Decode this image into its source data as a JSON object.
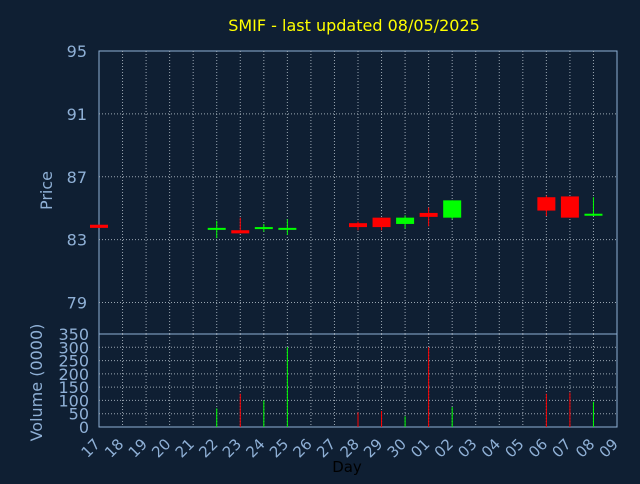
{
  "chart_data": [
    {
      "type": "candlestick",
      "title": "SMIF - last updated 08/05/2025",
      "ylabel": "Price",
      "ylim": [
        77,
        95
      ],
      "yticks": [
        95,
        91,
        87,
        83,
        79
      ],
      "grid": true,
      "x_day_labels": [
        "17",
        "18",
        "19",
        "20",
        "21",
        "22",
        "23",
        "24",
        "25",
        "26",
        "27",
        "28",
        "29",
        "30",
        "01",
        "02",
        "03",
        "04",
        "05",
        "06",
        "07",
        "08",
        "09"
      ],
      "candles": [
        {
          "day": "17",
          "open": 83.95,
          "close": 83.75,
          "high": 83.95,
          "low": 83.75
        },
        {
          "day": "22",
          "open": 83.7,
          "close": 83.75,
          "high": 84.2,
          "low": 83.1
        },
        {
          "day": "23",
          "open": 83.6,
          "close": 83.4,
          "high": 84.4,
          "low": 83.4
        },
        {
          "day": "24",
          "open": 83.7,
          "close": 83.8,
          "high": 84.0,
          "low": 83.5
        },
        {
          "day": "25",
          "open": 83.7,
          "close": 83.75,
          "high": 84.3,
          "low": 83.3
        },
        {
          "day": "28",
          "open": 84.05,
          "close": 83.8,
          "high": 84.15,
          "low": 83.6
        },
        {
          "day": "29",
          "open": 84.4,
          "close": 83.8,
          "high": 84.4,
          "low": 83.6
        },
        {
          "day": "30",
          "open": 84.0,
          "close": 84.4,
          "high": 84.55,
          "low": 83.7
        },
        {
          "day": "01",
          "open": 84.7,
          "close": 84.45,
          "high": 85.05,
          "low": 83.85
        },
        {
          "day": "02",
          "open": 84.4,
          "close": 85.5,
          "high": 85.5,
          "low": 84.3
        },
        {
          "day": "06",
          "open": 85.7,
          "close": 84.85,
          "high": 85.8,
          "low": 84.5
        },
        {
          "day": "07",
          "open": 85.75,
          "close": 84.4,
          "high": 85.75,
          "low": 84.4
        },
        {
          "day": "08",
          "open": 84.6,
          "close": 84.65,
          "high": 85.7,
          "low": 84.5
        }
      ],
      "colors": {
        "up": "#00ff00",
        "down": "#ff0000"
      }
    },
    {
      "type": "bar",
      "xlabel": "Day",
      "ylabel": "Volume (0000)",
      "ylim": [
        0,
        350
      ],
      "yticks": [
        350,
        300,
        250,
        200,
        150,
        100,
        50,
        0
      ],
      "grid": true,
      "volumes": [
        {
          "day": "22",
          "value": 70,
          "direction": "up"
        },
        {
          "day": "23",
          "value": 125,
          "direction": "down"
        },
        {
          "day": "24",
          "value": 100,
          "direction": "up"
        },
        {
          "day": "25",
          "value": 300,
          "direction": "up"
        },
        {
          "day": "28",
          "value": 55,
          "direction": "down"
        },
        {
          "day": "29",
          "value": 60,
          "direction": "down"
        },
        {
          "day": "30",
          "value": 40,
          "direction": "up"
        },
        {
          "day": "01",
          "value": 300,
          "direction": "down"
        },
        {
          "day": "02",
          "value": 75,
          "direction": "up"
        },
        {
          "day": "06",
          "value": 125,
          "direction": "down"
        },
        {
          "day": "07",
          "value": 130,
          "direction": "down"
        },
        {
          "day": "08",
          "value": 95,
          "direction": "up"
        }
      ]
    }
  ],
  "colors": {
    "background": "#0f1f33",
    "title": "#ffff00",
    "axis_text": "#8fb0d6",
    "xlabel_text": "#000000",
    "grid": "#9aa6b2",
    "frame": "#8fb0d6"
  }
}
